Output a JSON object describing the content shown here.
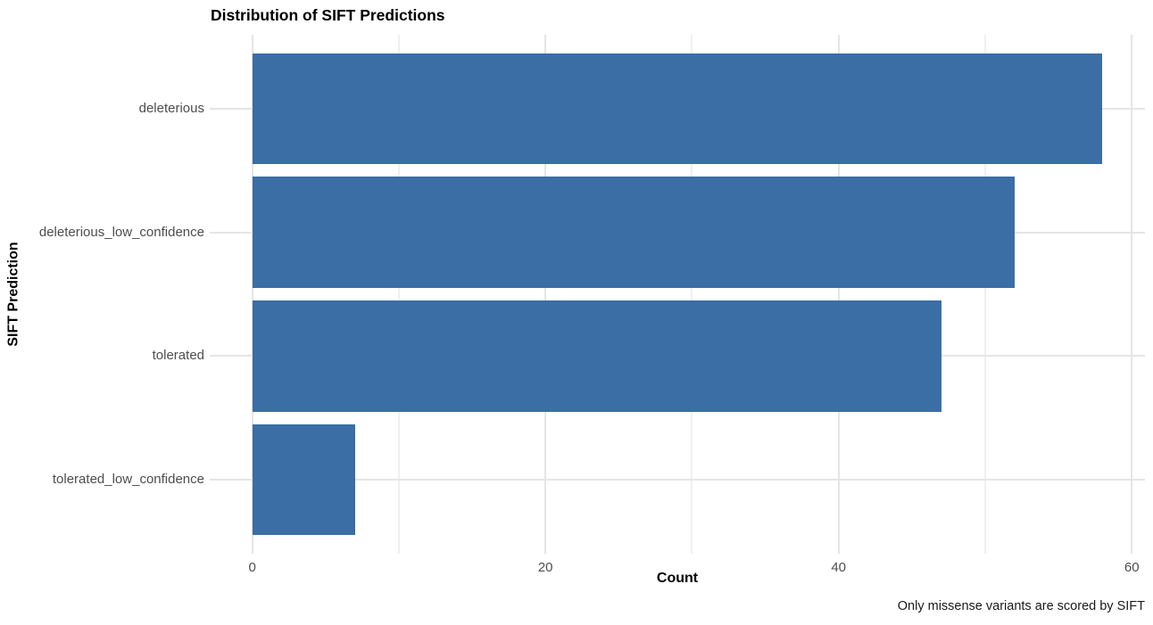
{
  "chart_data": {
    "type": "bar",
    "orientation": "horizontal",
    "title": "Distribution of SIFT Predictions",
    "categories": [
      "deleterious",
      "deleterious_low_confidence",
      "tolerated",
      "tolerated_low_confidence"
    ],
    "values": [
      58,
      52,
      47,
      7
    ],
    "xlabel": "Count",
    "ylabel": "SIFT Prediction",
    "caption": "Only missense variants are scored by SIFT",
    "xlim": [
      0,
      60
    ],
    "x_major_ticks": [
      0,
      20,
      40,
      60
    ],
    "x_minor_ticks": [
      10,
      30,
      50
    ],
    "grid": true,
    "legend": "none",
    "colors": {
      "bar": "#3A6EA5",
      "grid_major": "#E5E5E5",
      "grid_minor": "#F0F0F0",
      "axis_text": "#4D4D4D",
      "title_text": "#000000",
      "background": "#FFFFFF"
    }
  }
}
